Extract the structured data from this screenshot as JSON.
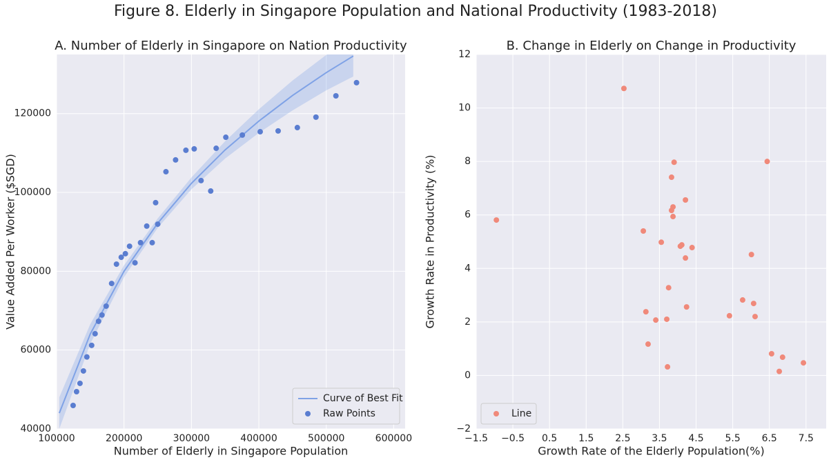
{
  "title": "Figure 8. Elderly in Singapore Population and National Productivity (1983-2018)",
  "chart_data": [
    {
      "type": "scatter",
      "title": "A. Number of Elderly in Singapore on Nation Productivity",
      "x_label": "Number of Elderly in Singapore Population",
      "y_label": "Value Added Per Worker ($SGD)",
      "series": [
        {
          "name": "Curve of Best Fit",
          "kind": "line",
          "color": "#7fa2e6",
          "x": [
            104000,
            150000,
            200000,
            250000,
            300000,
            350000,
            400000,
            450000,
            500000,
            540000
          ],
          "values": [
            44000,
            64100,
            80000,
            92200,
            102300,
            110800,
            118100,
            124600,
            130400,
            134600
          ],
          "band_lower": [
            40000,
            61600,
            78500,
            91000,
            100800,
            108600,
            115100,
            120800,
            125900,
            129400
          ],
          "band_upper": [
            48000,
            66600,
            81500,
            93400,
            103800,
            113000,
            121100,
            128400,
            134900,
            139800
          ]
        },
        {
          "name": "Raw Points",
          "kind": "scatter",
          "color": "#5a7dd0",
          "x": [
            124500,
            129600,
            134700,
            139800,
            144900,
            152000,
            157100,
            162200,
            167300,
            173500,
            181600,
            188800,
            195900,
            202000,
            208200,
            216300,
            224500,
            233700,
            241800,
            246900,
            250000,
            262200,
            276500,
            291800,
            304100,
            314300,
            328600,
            336700,
            351000,
            375500,
            402000,
            428600,
            457100,
            484700,
            514300,
            544900
          ],
          "values": [
            45950,
            49450,
            51550,
            54700,
            58250,
            61200,
            64150,
            67300,
            68900,
            71150,
            76900,
            81800,
            83550,
            84450,
            86350,
            82150,
            87250,
            91450,
            87250,
            97400,
            91950,
            105250,
            108250,
            110700,
            111050,
            103000,
            100350,
            111200,
            114000,
            114550,
            115400,
            115600,
            116450,
            119100,
            124500,
            127850
          ]
        }
      ],
      "xlim": [
        100000,
        617000
      ],
      "ylim": [
        40000,
        135000
      ],
      "xticks": [
        100000,
        200000,
        300000,
        400000,
        500000,
        600000
      ],
      "yticks": [
        40000,
        60000,
        80000,
        100000,
        120000
      ],
      "grid": true,
      "legend": "lower right"
    },
    {
      "type": "scatter",
      "title": "B. Change in Elderly on Change in Productivity",
      "x_label": "Growth Rate of the Elderly Population(%)",
      "y_label": "Growth Rate in Productivity (%)",
      "series": [
        {
          "name": "Line",
          "kind": "scatter",
          "color": "#f0897a",
          "x": [
            -0.95,
            2.53,
            3.06,
            3.13,
            3.19,
            3.4,
            3.55,
            3.7,
            3.72,
            3.75,
            3.83,
            3.83,
            3.87,
            3.87,
            3.9,
            4.07,
            4.11,
            4.21,
            4.21,
            4.24,
            4.39,
            5.41,
            5.77,
            6.01,
            6.07,
            6.11,
            6.44,
            6.56,
            6.77,
            6.86,
            7.43
          ],
          "values": [
            5.81,
            10.73,
            5.4,
            2.38,
            1.17,
            2.07,
            4.98,
            2.1,
            0.32,
            3.28,
            7.41,
            6.17,
            6.3,
            5.94,
            7.97,
            4.83,
            4.88,
            6.56,
            4.39,
            2.56,
            4.78,
            2.23,
            2.82,
            4.52,
            2.69,
            2.2,
            8.0,
            0.81,
            0.15,
            0.68,
            0.47
          ]
        }
      ],
      "xlim": [
        -1.5,
        8.05
      ],
      "ylim": [
        -2,
        12
      ],
      "xticks": [
        {
          "value": -1.5,
          "label": "−1.5"
        },
        {
          "value": -0.5,
          "label": "−0.5"
        },
        0.5,
        1.5,
        2.5,
        3.5,
        4.5,
        5.5,
        6.5,
        7.5
      ],
      "yticks": [
        {
          "value": -2,
          "label": "−2"
        },
        0,
        2,
        4,
        6,
        8,
        10,
        12
      ],
      "grid": true,
      "legend": "lower left"
    }
  ]
}
